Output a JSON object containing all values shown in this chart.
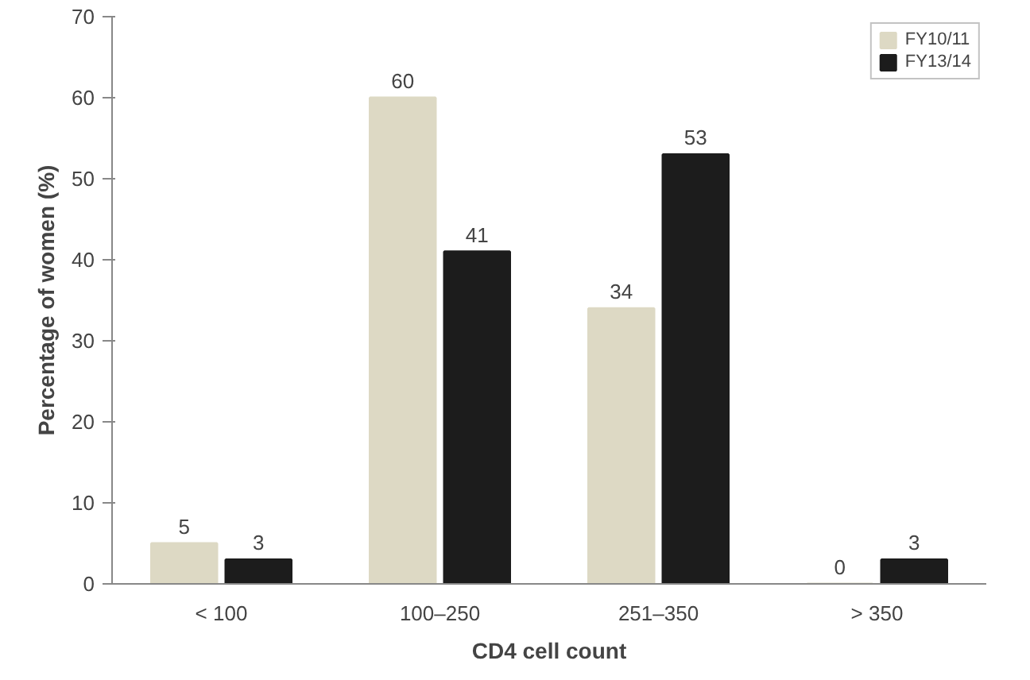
{
  "chart_data": {
    "type": "bar",
    "xlabel": "CD4 cell count",
    "ylabel": "Percentage of women (%)",
    "categories": [
      "< 100",
      "100–250",
      "251–350",
      "> 350"
    ],
    "series": [
      {
        "name": "FY10/11",
        "color": "#ddd9c4",
        "values": [
          5,
          60,
          34,
          0
        ]
      },
      {
        "name": "FY13/14",
        "color": "#1c1c1c",
        "values": [
          3,
          41,
          53,
          3
        ]
      }
    ],
    "ylim": [
      0,
      70
    ],
    "yticks": [
      0,
      10,
      20,
      30,
      40,
      50,
      60,
      70
    ],
    "grid": false,
    "legend": "top right",
    "data_labels": true
  }
}
